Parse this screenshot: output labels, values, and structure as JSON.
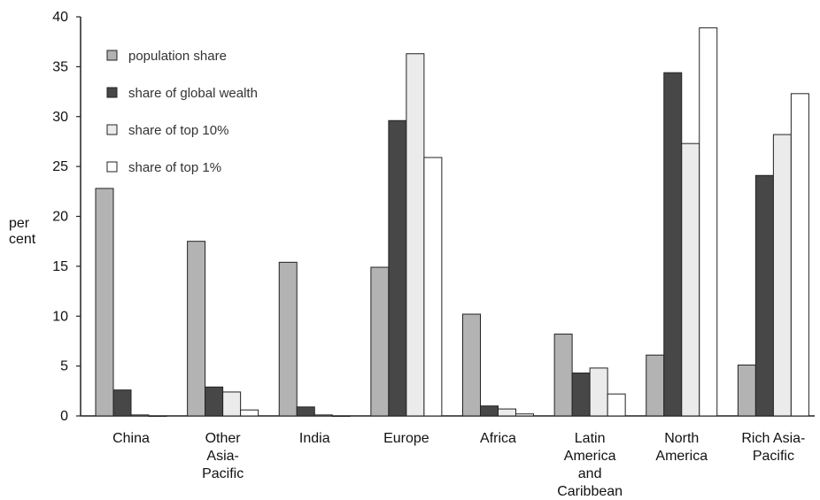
{
  "chart_data": {
    "type": "bar",
    "ylabel": [
      "per",
      "cent"
    ],
    "ylim": [
      0,
      40
    ],
    "yticks": [
      0,
      5,
      10,
      15,
      20,
      25,
      30,
      35,
      40
    ],
    "grid": false,
    "legend_position": "top-left",
    "categories": [
      [
        "China"
      ],
      [
        "Other",
        "Asia-",
        "Pacific"
      ],
      [
        "India"
      ],
      [
        "Europe"
      ],
      [
        "Africa"
      ],
      [
        "Latin",
        "America",
        "and",
        "Caribbean"
      ],
      [
        "North",
        "America"
      ],
      [
        "Rich Asia-",
        "Pacific"
      ]
    ],
    "series": [
      {
        "name": "population share",
        "color": "#b3b3b3",
        "values": [
          22.8,
          17.5,
          15.4,
          14.9,
          10.2,
          8.2,
          6.1,
          5.1
        ]
      },
      {
        "name": "share of global wealth",
        "color": "#474747",
        "values": [
          2.6,
          2.9,
          0.9,
          29.6,
          1.0,
          4.3,
          34.4,
          24.1
        ]
      },
      {
        "name": "share of top 10%",
        "color": "#ebebeb",
        "values": [
          0.1,
          2.4,
          0.1,
          36.3,
          0.7,
          4.8,
          27.3,
          28.2
        ]
      },
      {
        "name": "share of top 1%",
        "color": "#ffffff",
        "values": [
          0.0,
          0.6,
          0.0,
          25.9,
          0.2,
          2.2,
          38.9,
          32.3
        ]
      }
    ]
  }
}
